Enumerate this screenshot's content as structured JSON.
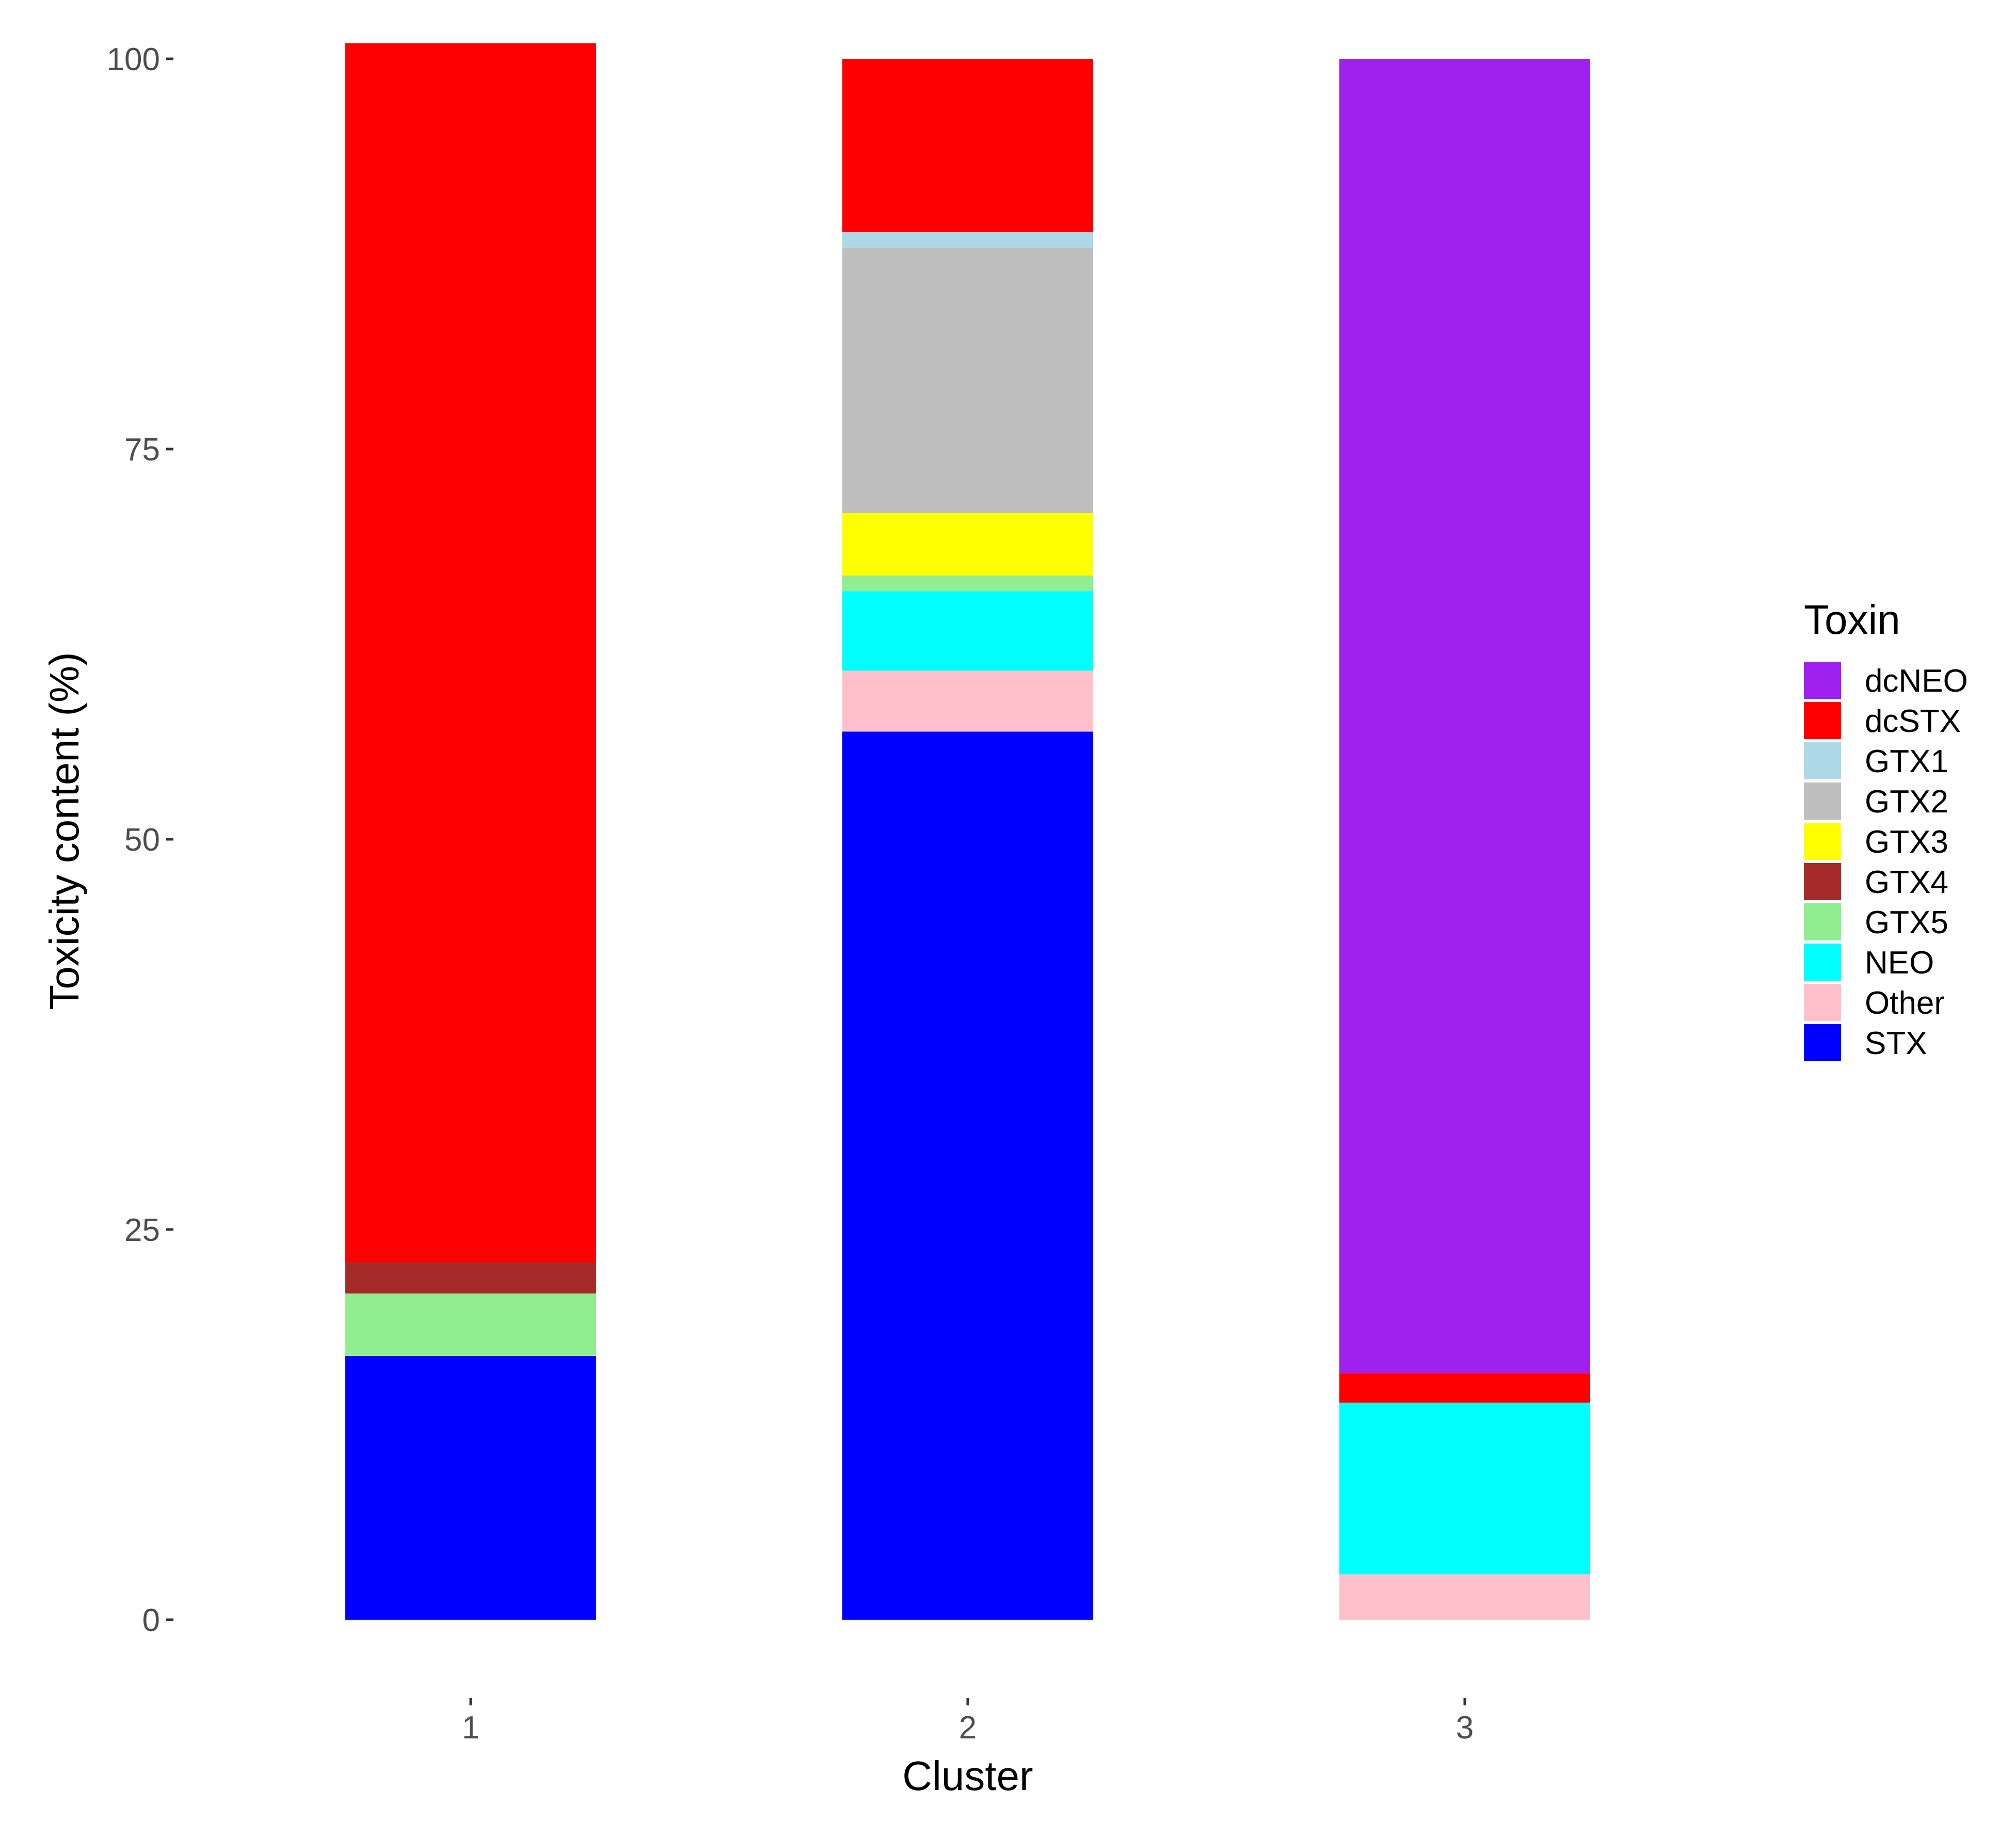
{
  "chart_data": {
    "type": "bar",
    "stacked": true,
    "categories": [
      "1",
      "2",
      "3"
    ],
    "xlabel": "Cluster",
    "ylabel": "Toxicity content (%)",
    "ylim": [
      0,
      101
    ],
    "yticks": [
      "0",
      "25",
      "50",
      "75",
      "100"
    ],
    "grid": false,
    "legend": {
      "title": "Toxin",
      "position": "right"
    },
    "series": [
      {
        "name": "dcNEO",
        "color": "#A020F0",
        "values": [
          0,
          0,
          84.2
        ]
      },
      {
        "name": "dcSTX",
        "color": "#FF0000",
        "values": [
          78.1,
          11.1,
          1.9
        ]
      },
      {
        "name": "GTX1",
        "color": "#ADD8E6",
        "values": [
          0,
          1.0,
          0
        ]
      },
      {
        "name": "GTX2",
        "color": "#BEBEBE",
        "values": [
          0,
          17.0,
          0
        ]
      },
      {
        "name": "GTX3",
        "color": "#FFFF00",
        "values": [
          0,
          4.0,
          0
        ]
      },
      {
        "name": "GTX4",
        "color": "#A52A2A",
        "values": [
          2.0,
          0,
          0
        ]
      },
      {
        "name": "GTX5",
        "color": "#90EE90",
        "values": [
          4.0,
          1.0,
          0
        ]
      },
      {
        "name": "NEO",
        "color": "#00FFFF",
        "values": [
          0,
          5.1,
          11.0
        ]
      },
      {
        "name": "Other",
        "color": "#FFC0CB",
        "values": [
          0,
          3.9,
          2.9
        ]
      },
      {
        "name": "STX",
        "color": "#0000FF",
        "values": [
          16.9,
          56.9,
          0
        ]
      }
    ]
  }
}
